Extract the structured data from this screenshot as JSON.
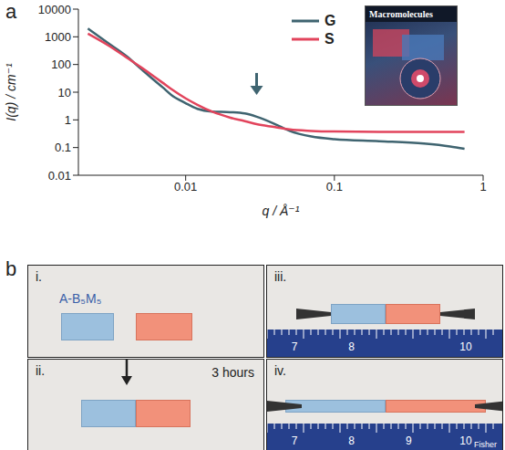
{
  "chart_data": {
    "type": "line",
    "panel": "a",
    "x_label": "q / Å⁻¹",
    "y_label": "I(q) / cm⁻¹",
    "log": true,
    "legend": "upper right",
    "x": [
      0.0022,
      0.003,
      0.004,
      0.005,
      0.006,
      0.007,
      0.008,
      0.01,
      0.012,
      0.015,
      0.02,
      0.025,
      0.03,
      0.04,
      0.05,
      0.07,
      0.1,
      0.2,
      0.4,
      0.6,
      0.75
    ],
    "series": [
      {
        "name": "G",
        "color": "#3f6470",
        "values": [
          2000,
          600,
          200,
          70,
          30,
          15,
          8,
          4,
          2.5,
          2,
          1.9,
          1.7,
          1.3,
          0.7,
          0.4,
          0.25,
          0.2,
          0.17,
          0.14,
          0.11,
          0.09
        ]
      },
      {
        "name": "S",
        "color": "#e2445c",
        "values": [
          1300,
          500,
          180,
          80,
          40,
          22,
          13,
          6,
          3.5,
          2,
          1.2,
          0.9,
          0.7,
          0.55,
          0.45,
          0.4,
          0.38,
          0.37,
          0.37,
          0.37,
          0.37
        ]
      }
    ],
    "xlim": [
      0.0019,
      1
    ],
    "xticks": [
      0.01,
      0.1,
      1
    ],
    "ylim": [
      0.01,
      10000
    ],
    "yticks": [
      0.01,
      0.1,
      1,
      10,
      100,
      1000,
      10000
    ],
    "arrow": {
      "x": 0.03,
      "y": 8
    },
    "inset": {
      "title": "Macromolecules"
    }
  },
  "panel_b": {
    "label": "b",
    "photos": [
      {
        "label": "i.",
        "text": "A-B₅M₅"
      },
      {
        "label": "ii.",
        "text": "3 hours"
      },
      {
        "label": "iii.",
        "ruler": [
          "7",
          "8",
          "10"
        ]
      },
      {
        "label": "iv.",
        "ruler": [
          "7",
          "8",
          "9",
          "10"
        ],
        "brand": "Fisher"
      }
    ]
  }
}
